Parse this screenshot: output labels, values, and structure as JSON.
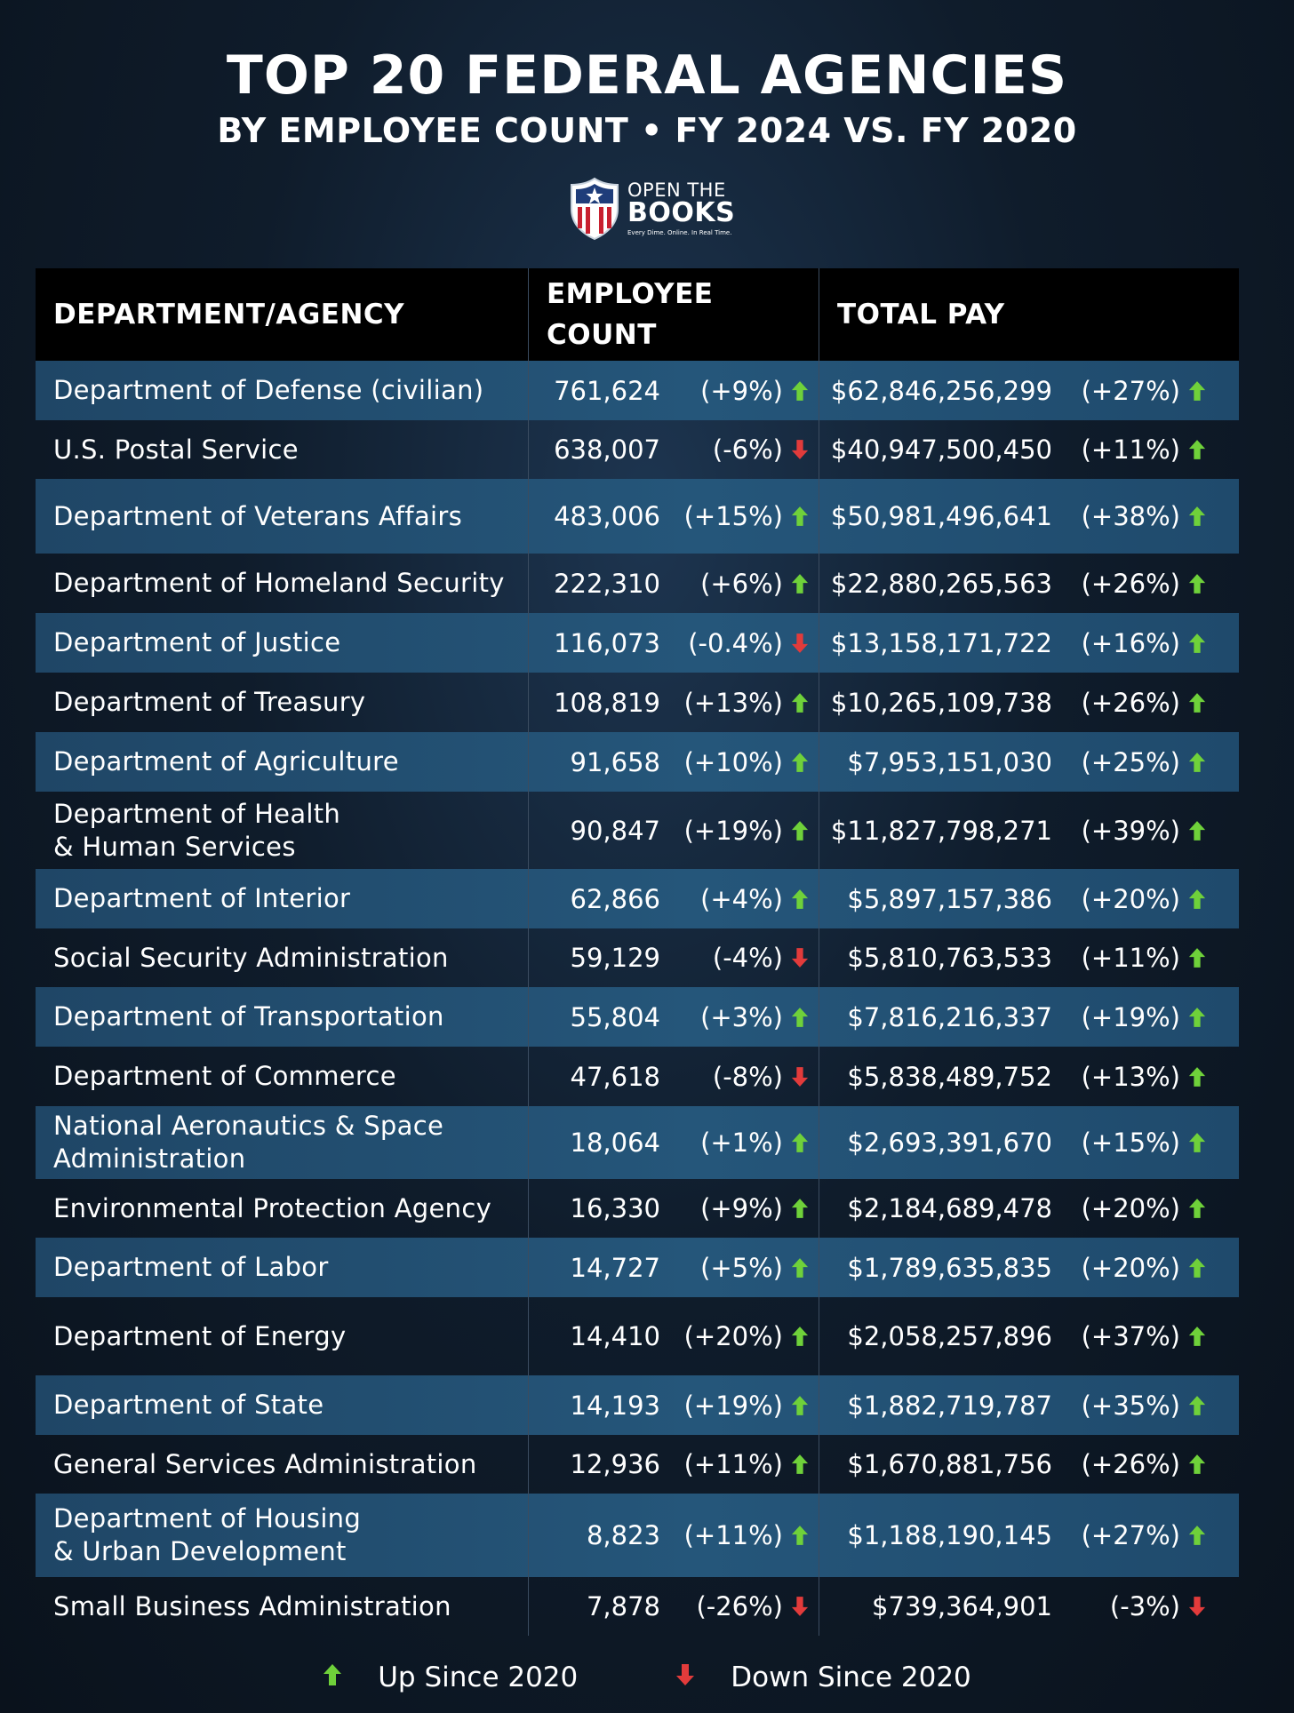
{
  "title": "TOP 20 FEDERAL AGENCIES",
  "subtitle": "BY EMPLOYEE COUNT • FY 2024 VS. FY 2020",
  "logo": {
    "line1": "OPEN THE",
    "line2": "BOOKS",
    "tagline": "Every Dime. Online. In Real Time."
  },
  "colors": {
    "up": "#6fd13a",
    "down": "#e23b3b",
    "header_bg": "#000000",
    "row_band": "#25567a"
  },
  "headers": {
    "agency": "DEPARTMENT/AGENCY",
    "employee_line1": "EMPLOYEE",
    "employee_line2": "COUNT",
    "pay": "TOTAL PAY"
  },
  "legend": {
    "up_label": "Up Since 2020",
    "down_label": "Down Since 2020",
    "up_icon": "up-arrow-icon",
    "down_icon": "down-arrow-icon"
  },
  "chart_data": {
    "type": "table",
    "title": "TOP 20 FEDERAL AGENCIES",
    "subtitle": "BY EMPLOYEE COUNT • FY 2024 VS. FY 2020",
    "columns": [
      "DEPARTMENT/AGENCY",
      "EMPLOYEE COUNT",
      "TOTAL PAY"
    ],
    "rows": [
      {
        "agency": [
          "Department of Defense (civilian)"
        ],
        "employees": "761,624",
        "emp_change": "(+9%)",
        "emp_dir": "up",
        "pay": "$62,846,256,299",
        "pay_change": "(+27%)",
        "pay_dir": "up"
      },
      {
        "agency": [
          "U.S. Postal Service"
        ],
        "employees": "638,007",
        "emp_change": "(-6%)",
        "emp_dir": "down",
        "pay": "$40,947,500,450",
        "pay_change": "(+11%)",
        "pay_dir": "up"
      },
      {
        "agency": [
          "Department of Veterans Affairs"
        ],
        "employees": "483,006",
        "emp_change": "(+15%)",
        "emp_dir": "up",
        "pay": "$50,981,496,641",
        "pay_change": "(+38%)",
        "pay_dir": "up"
      },
      {
        "agency": [
          "Department of Homeland Security"
        ],
        "employees": "222,310",
        "emp_change": "(+6%)",
        "emp_dir": "up",
        "pay": "$22,880,265,563",
        "pay_change": "(+26%)",
        "pay_dir": "up"
      },
      {
        "agency": [
          "Department of Justice"
        ],
        "employees": "116,073",
        "emp_change": "(-0.4%)",
        "emp_dir": "down",
        "pay": "$13,158,171,722",
        "pay_change": "(+16%)",
        "pay_dir": "up"
      },
      {
        "agency": [
          "Department of Treasury"
        ],
        "employees": "108,819",
        "emp_change": "(+13%)",
        "emp_dir": "up",
        "pay": "$10,265,109,738",
        "pay_change": "(+26%)",
        "pay_dir": "up"
      },
      {
        "agency": [
          "Department of Agriculture"
        ],
        "employees": "91,658",
        "emp_change": "(+10%)",
        "emp_dir": "up",
        "pay": "$7,953,151,030",
        "pay_change": "(+25%)",
        "pay_dir": "up"
      },
      {
        "agency": [
          "Department of Health",
          "& Human Services"
        ],
        "employees": "90,847",
        "emp_change": "(+19%)",
        "emp_dir": "up",
        "pay": "$11,827,798,271",
        "pay_change": "(+39%)",
        "pay_dir": "up"
      },
      {
        "agency": [
          "Department of Interior"
        ],
        "employees": "62,866",
        "emp_change": "(+4%)",
        "emp_dir": "up",
        "pay": "$5,897,157,386",
        "pay_change": "(+20%)",
        "pay_dir": "up"
      },
      {
        "agency": [
          "Social Security Administration"
        ],
        "employees": "59,129",
        "emp_change": "(-4%)",
        "emp_dir": "down",
        "pay": "$5,810,763,533",
        "pay_change": "(+11%)",
        "pay_dir": "up"
      },
      {
        "agency": [
          "Department of Transportation"
        ],
        "employees": "55,804",
        "emp_change": "(+3%)",
        "emp_dir": "up",
        "pay": "$7,816,216,337",
        "pay_change": "(+19%)",
        "pay_dir": "up"
      },
      {
        "agency": [
          "Department of Commerce"
        ],
        "employees": "47,618",
        "emp_change": "(-8%)",
        "emp_dir": "down",
        "pay": "$5,838,489,752",
        "pay_change": "(+13%)",
        "pay_dir": "up"
      },
      {
        "agency": [
          "National Aeronautics & Space",
          "Administration"
        ],
        "employees": "18,064",
        "emp_change": "(+1%)",
        "emp_dir": "up",
        "pay": "$2,693,391,670",
        "pay_change": "(+15%)",
        "pay_dir": "up"
      },
      {
        "agency": [
          "Environmental Protection Agency"
        ],
        "employees": "16,330",
        "emp_change": "(+9%)",
        "emp_dir": "up",
        "pay": "$2,184,689,478",
        "pay_change": "(+20%)",
        "pay_dir": "up"
      },
      {
        "agency": [
          "Department of Labor"
        ],
        "employees": "14,727",
        "emp_change": "(+5%)",
        "emp_dir": "up",
        "pay": "$1,789,635,835",
        "pay_change": "(+20%)",
        "pay_dir": "up"
      },
      {
        "agency": [
          "Department of Energy"
        ],
        "employees": "14,410",
        "emp_change": "(+20%)",
        "emp_dir": "up",
        "pay": "$2,058,257,896",
        "pay_change": "(+37%)",
        "pay_dir": "up"
      },
      {
        "agency": [
          "Department of State"
        ],
        "employees": "14,193",
        "emp_change": "(+19%)",
        "emp_dir": "up",
        "pay": "$1,882,719,787",
        "pay_change": "(+35%)",
        "pay_dir": "up"
      },
      {
        "agency": [
          "General Services Administration"
        ],
        "employees": "12,936",
        "emp_change": "(+11%)",
        "emp_dir": "up",
        "pay": "$1,670,881,756",
        "pay_change": "(+26%)",
        "pay_dir": "up"
      },
      {
        "agency": [
          "Department of Housing",
          "& Urban Development"
        ],
        "employees": "8,823",
        "emp_change": "(+11%)",
        "emp_dir": "up",
        "pay": "$1,188,190,145",
        "pay_change": "(+27%)",
        "pay_dir": "up"
      },
      {
        "agency": [
          "Small Business Administration"
        ],
        "employees": "7,878",
        "emp_change": "(-26%)",
        "emp_dir": "down",
        "pay": "$739,364,901",
        "pay_change": "(-3%)",
        "pay_dir": "down"
      }
    ]
  }
}
